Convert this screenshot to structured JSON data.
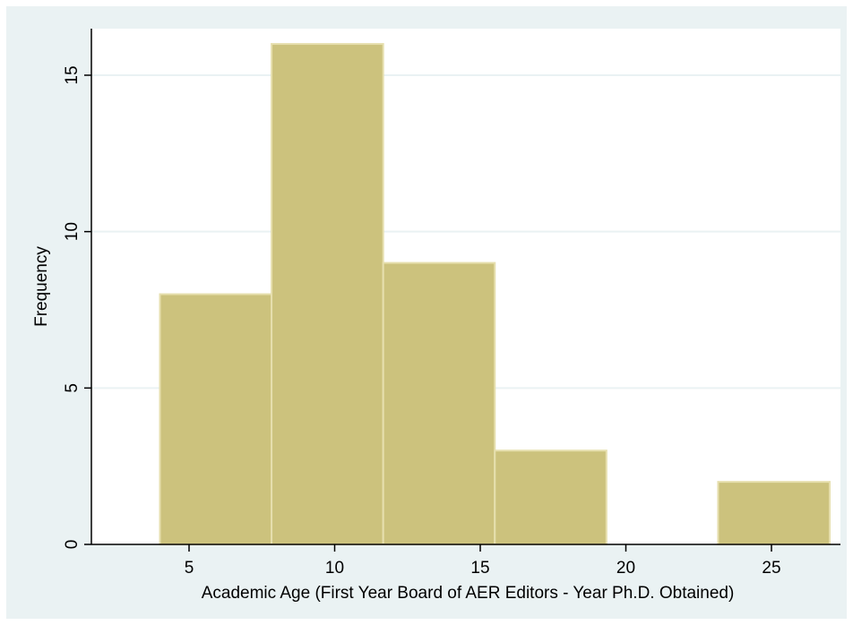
{
  "chart_data": {
    "type": "bar",
    "subtype": "histogram",
    "title": "",
    "xlabel": "Academic Age (First Year Board of AER Editors - Year Ph.D. Obtained)",
    "ylabel": "Frequency",
    "bins": [
      {
        "start": 4,
        "end": 7.833,
        "value": 8
      },
      {
        "start": 7.833,
        "end": 11.667,
        "value": 16
      },
      {
        "start": 11.667,
        "end": 15.5,
        "value": 9
      },
      {
        "start": 15.5,
        "end": 19.333,
        "value": 3
      },
      {
        "start": 19.333,
        "end": 23.167,
        "value": 0
      },
      {
        "start": 23.167,
        "end": 27,
        "value": 2
      }
    ],
    "xlim": [
      1.6,
      28.3
    ],
    "ylim": [
      0,
      16.5
    ],
    "xticks": [
      5,
      10,
      15,
      20,
      25
    ],
    "yticks": [
      0,
      5,
      10,
      15
    ],
    "grid": "horizontal",
    "legend": "none",
    "colors": {
      "background": "#eaf2f3",
      "plot_background": "#ffffff",
      "bar_fill": "#ccc27d",
      "bar_edge": "#e6dfae",
      "grid": "#eaf2f3",
      "axis": "#000000"
    }
  }
}
